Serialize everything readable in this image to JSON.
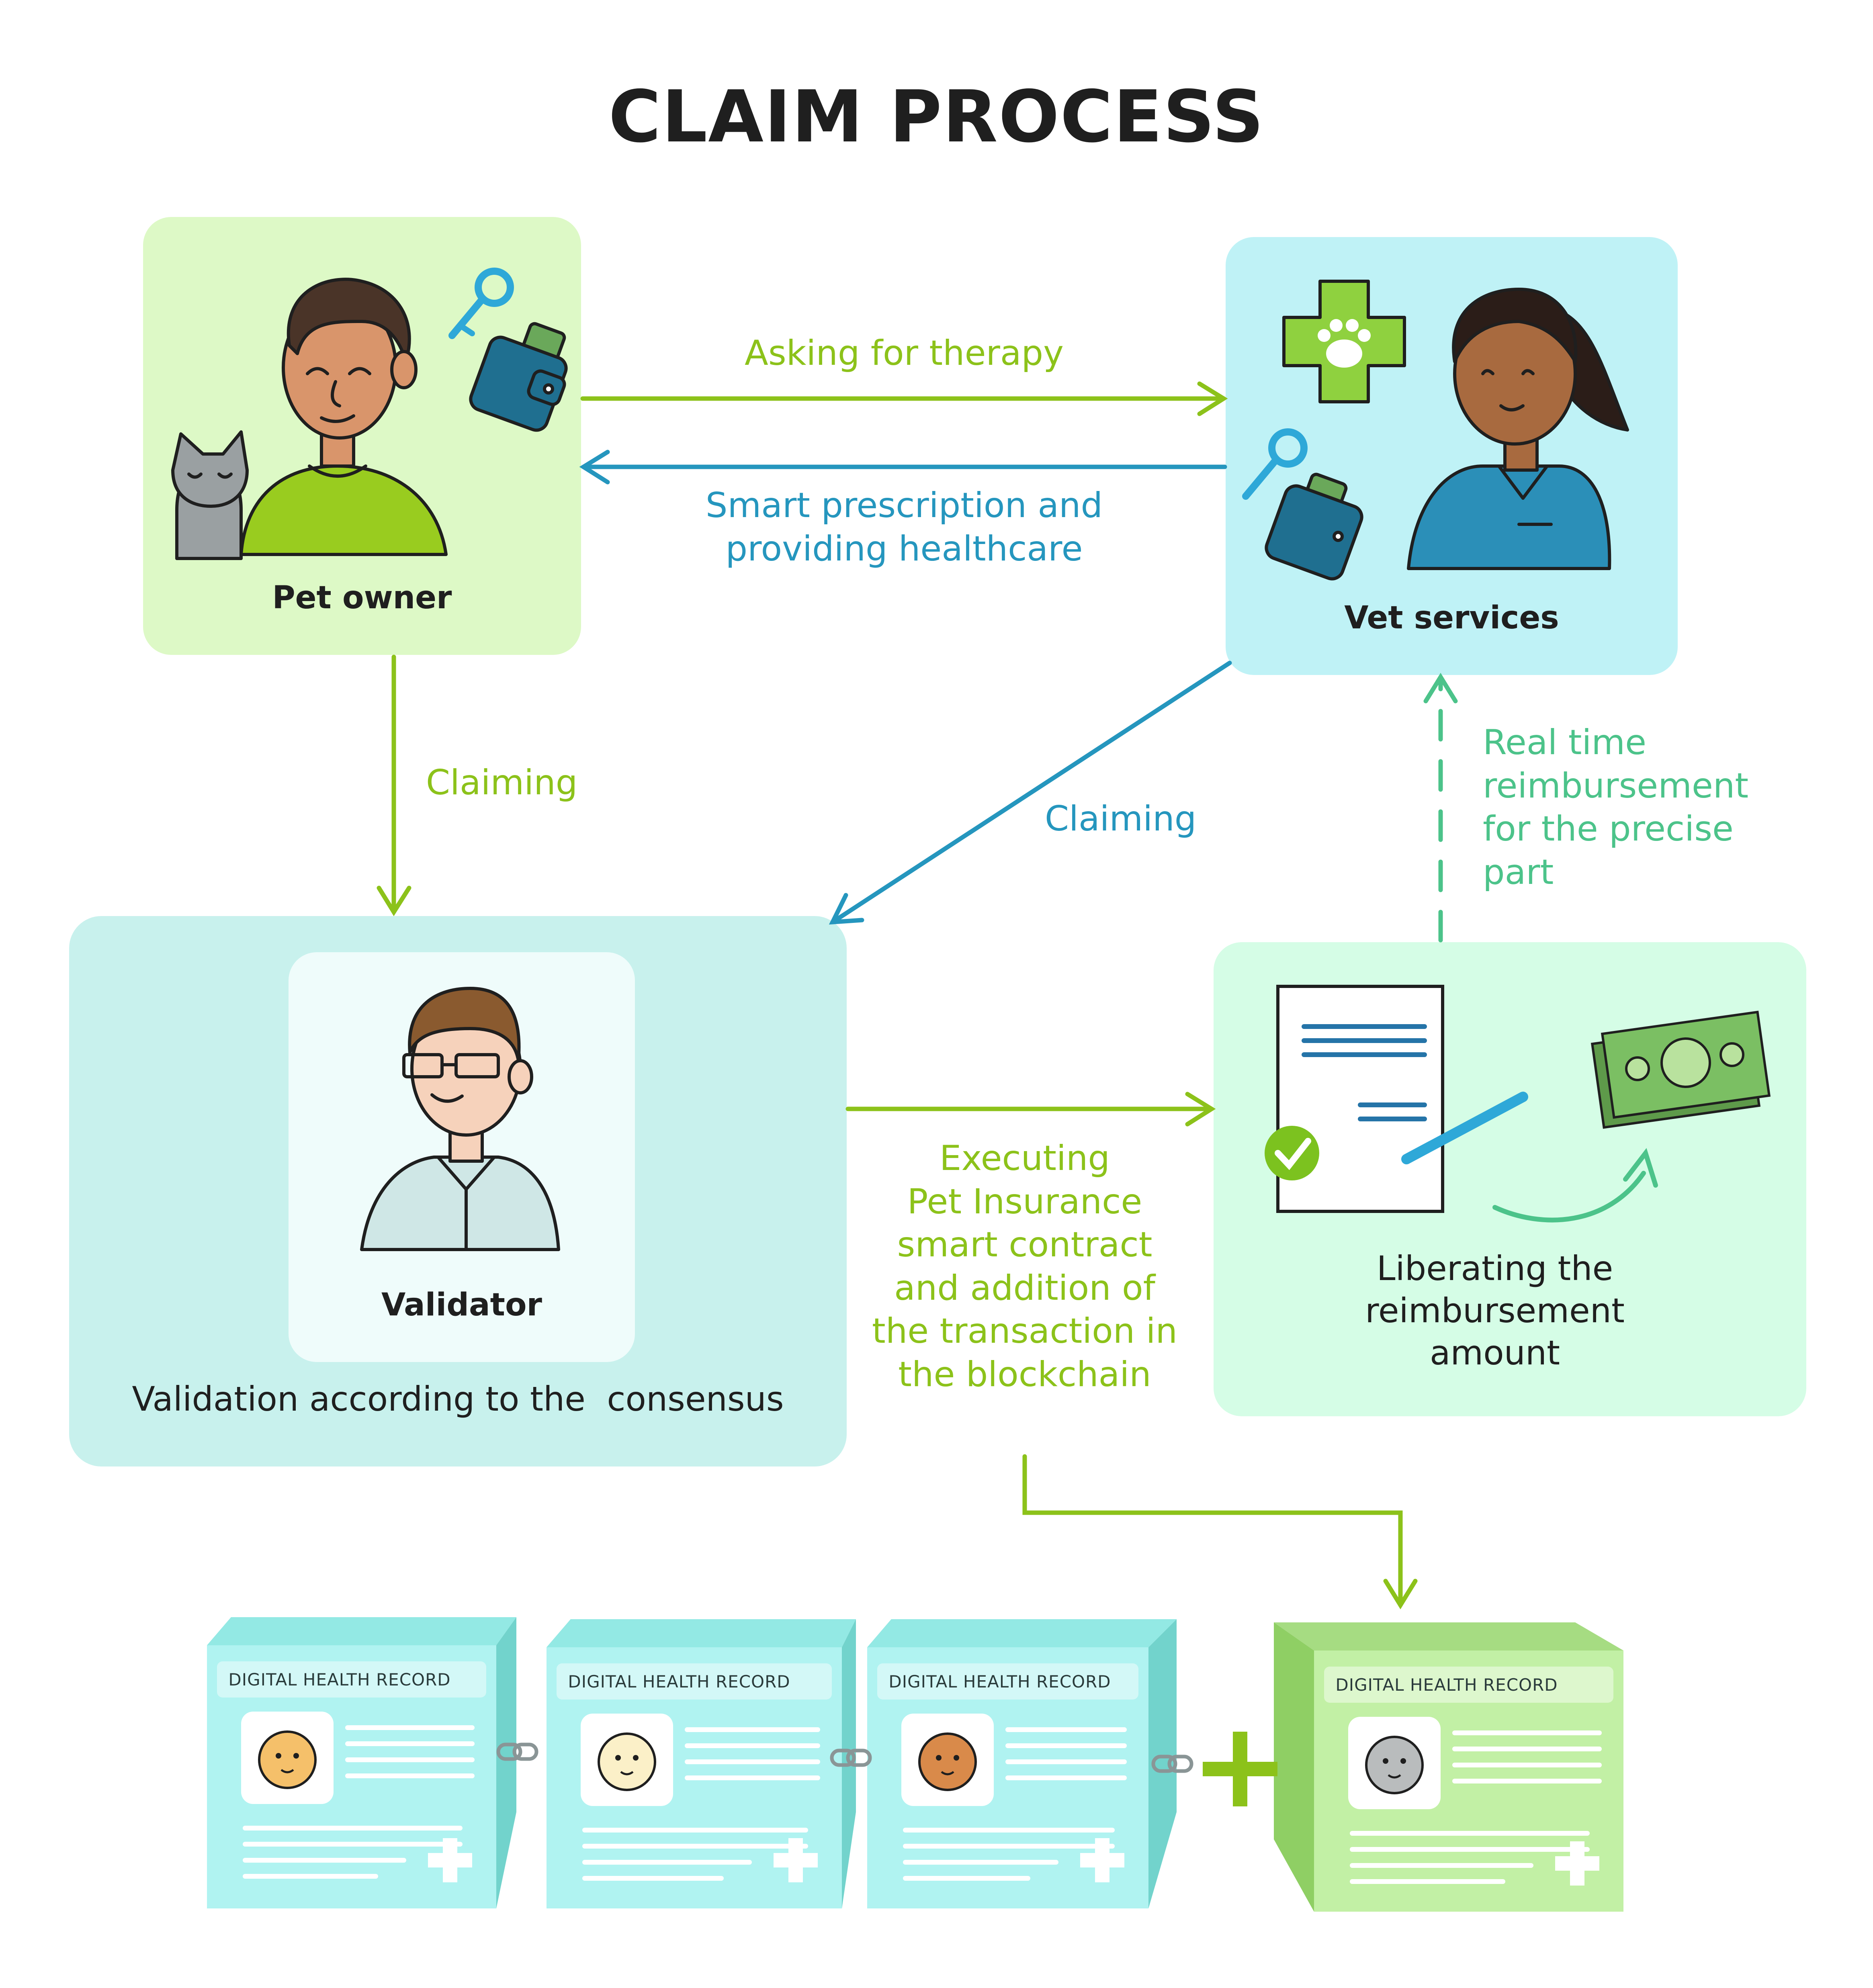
{
  "title": "CLAIM PROCESS",
  "nodes": {
    "pet_owner": "Pet owner",
    "vet_services": "Vet services",
    "validator": "Validator",
    "validation_note": "Validation according to the  consensus",
    "reimbursement_label": [
      "Liberating the",
      "reimbursement",
      "amount"
    ]
  },
  "edges": {
    "asking": "Asking for therapy",
    "prescription": [
      "Smart prescription and",
      "providing healthcare"
    ],
    "claiming_owner": "Claiming",
    "claiming_vet": "Claiming",
    "executing": [
      "Executing",
      "Pet Insurance",
      "smart contract",
      "and addition of",
      "the transaction in",
      "the blockchain"
    ],
    "realtime": [
      "Real time",
      "reimbursement",
      "for the precise",
      "part"
    ]
  },
  "blocks": [
    {
      "header": "DIGITAL HEALTH RECORD",
      "pet": "dog-icon"
    },
    {
      "header": "DIGITAL HEALTH RECORD",
      "pet": "puppy-icon"
    },
    {
      "header": "DIGITAL HEALTH RECORD",
      "pet": "bulldog-icon"
    },
    {
      "header": "DIGITAL HEALTH RECORD",
      "pet": "cat-icon"
    }
  ],
  "colors": {
    "green": "#8cc21a",
    "blue": "#2596be",
    "teal": "#4cc38a",
    "owner_bg": "#ddf9c6",
    "vet_bg": "#bff2f6",
    "validator_bg": "#c8f1ed",
    "reimb_bg": "#d5fde6",
    "block_cyan": "#b0f3f1",
    "block_green": "#c2f0a5"
  }
}
